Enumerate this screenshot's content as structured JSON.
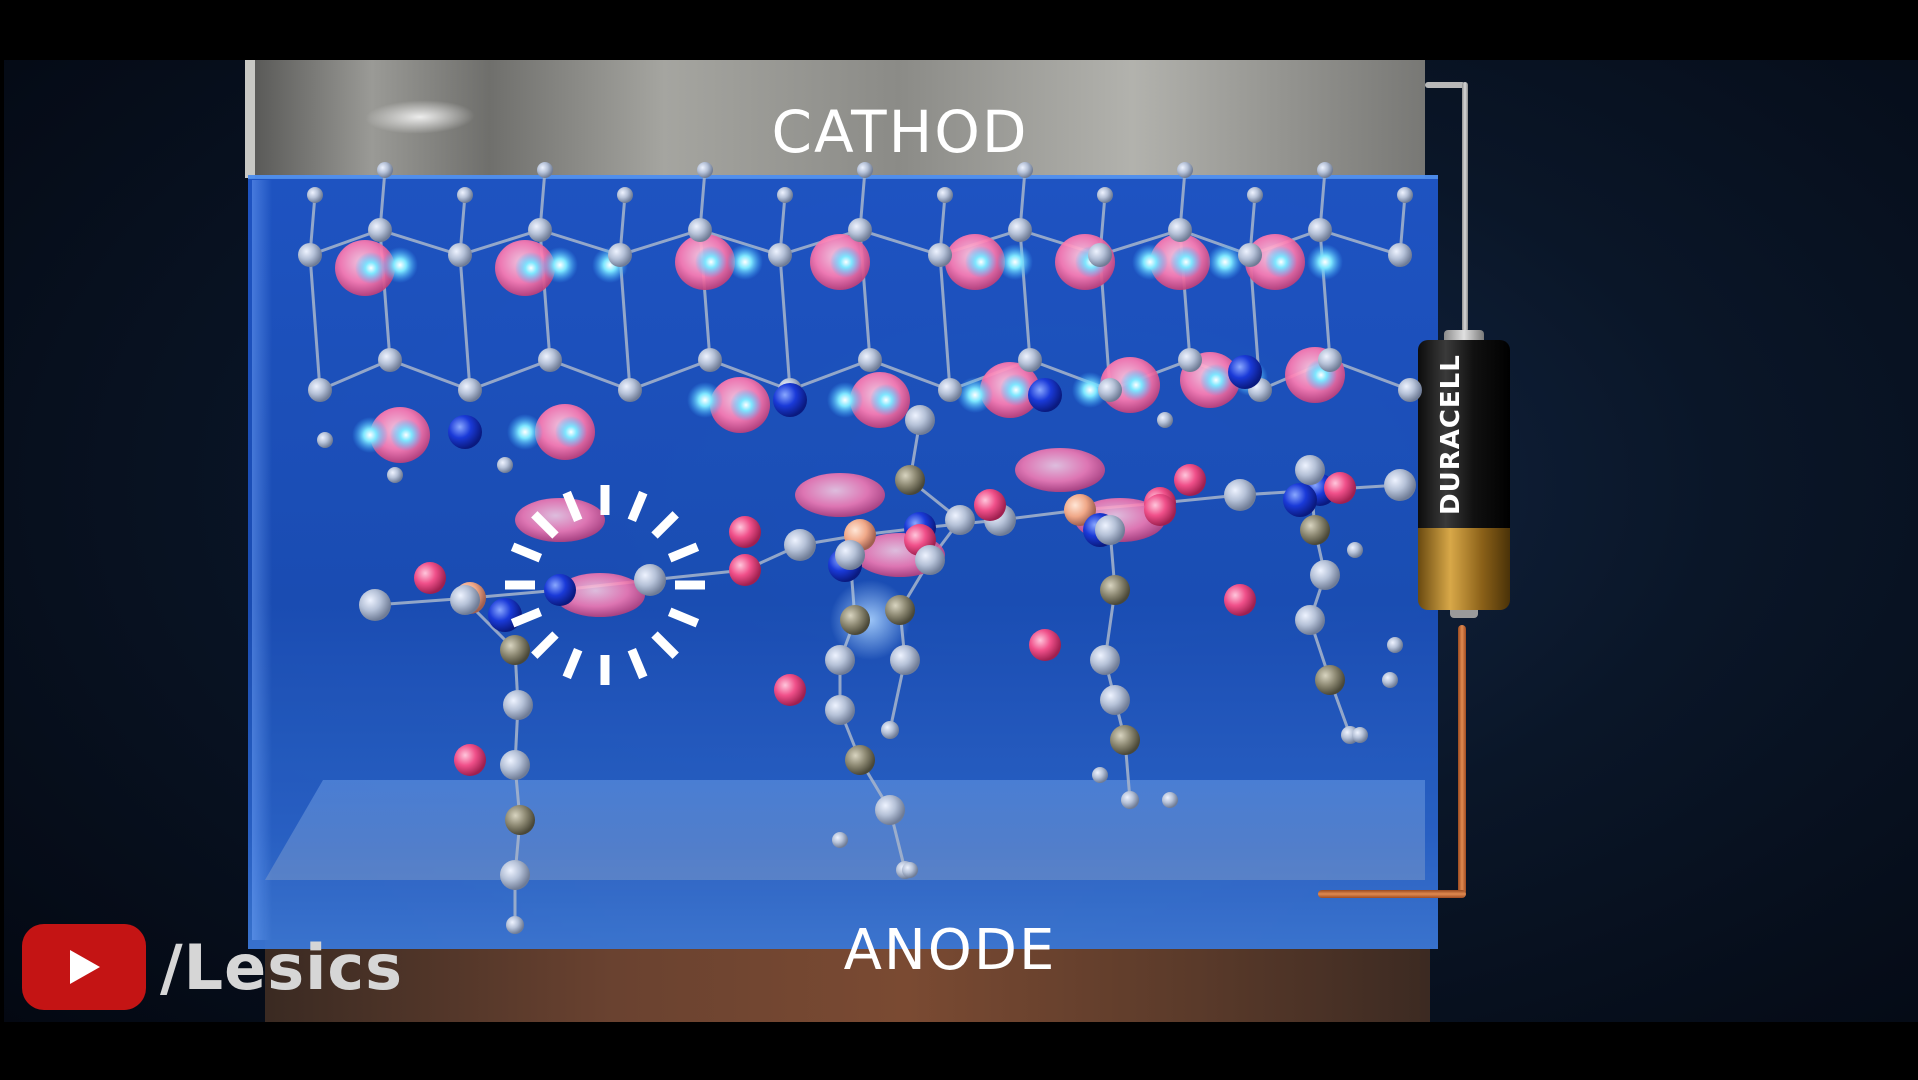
{
  "labels": {
    "top": "CATHOD",
    "bottom": "ANODE"
  },
  "battery": {
    "brand": "DURACELL"
  },
  "channel": {
    "name": "/Lesics",
    "icon": "youtube-play-icon"
  },
  "colors": {
    "electrolyte": "#1f56c8",
    "background": "#0a1628",
    "atom_gray": "#b8c4d8",
    "atom_pink": "#f0508a",
    "atom_blue": "#1a3ad8",
    "atom_cyan": "#7fe8ff",
    "orbital_pink": "#ff8ec0",
    "youtube_red": "#c41414"
  }
}
